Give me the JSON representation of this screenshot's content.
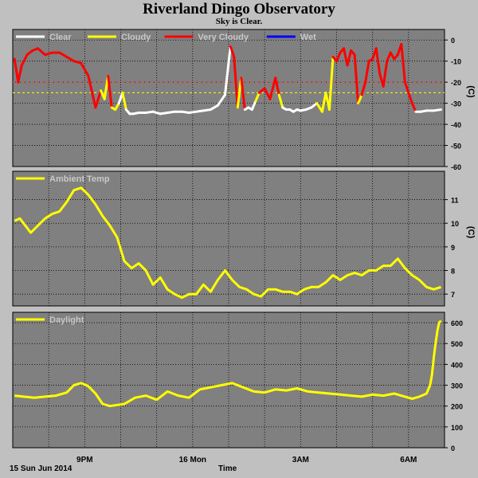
{
  "title": "Riverland Dingo Observatory",
  "subtitle": "Sky is Clear.",
  "date_label": "15 Sun Jun 2014",
  "xlabel": "Time",
  "colors": {
    "panel_bg": "#808080",
    "page_bg": "#c0c0c0",
    "clear": "#ffffff",
    "cloudy": "#ffff00",
    "very_cloudy": "#ff0000",
    "wet": "#0000ff",
    "temp": "#ffff00",
    "daylight": "#ffff00",
    "threshold": "#ffff00",
    "threshold2": "#ff4040"
  },
  "chart_data": [
    {
      "type": "line",
      "name": "sky-temperature-panel",
      "ylabel": "(C)",
      "ylim": [
        -60,
        5
      ],
      "yticks": [
        0,
        -10,
        -20,
        -30,
        -40,
        -50,
        -60
      ],
      "xlim": [
        19.0,
        31.0
      ],
      "xticks": [
        {
          "x": 21,
          "label": "9PM"
        },
        {
          "x": 24,
          "label": "16 Mon"
        },
        {
          "x": 27,
          "label": "3AM"
        },
        {
          "x": 30,
          "label": "6AM"
        }
      ],
      "grid": true,
      "legend": [
        {
          "name": "Clear",
          "color": "#ffffff"
        },
        {
          "name": "Cloudy",
          "color": "#ffff00"
        },
        {
          "name": "Very Cloudy",
          "color": "#ff0000"
        },
        {
          "name": "Wet",
          "color": "#0000ff"
        }
      ],
      "thresholds": [
        {
          "value": -20,
          "color": "#ff4040"
        },
        {
          "value": -25,
          "color": "#ffff00"
        }
      ],
      "x": [
        19.05,
        19.15,
        19.25,
        19.4,
        19.55,
        19.7,
        19.9,
        20.1,
        20.3,
        20.5,
        20.7,
        20.9,
        21.1,
        21.3,
        21.45,
        21.55,
        21.65,
        21.75,
        21.85,
        21.95,
        22.05,
        22.15,
        22.25,
        22.35,
        22.5,
        22.7,
        22.9,
        23.1,
        23.3,
        23.5,
        23.7,
        23.9,
        24.1,
        24.3,
        24.5,
        24.7,
        24.9,
        25.05,
        25.15,
        25.25,
        25.35,
        25.45,
        25.55,
        25.65,
        25.75,
        25.85,
        26.0,
        26.15,
        26.3,
        26.4,
        26.5,
        26.6,
        26.7,
        26.8,
        26.9,
        27.0,
        27.15,
        27.3,
        27.45,
        27.6,
        27.7,
        27.8,
        27.9,
        28.0,
        28.1,
        28.2,
        28.3,
        28.4,
        28.5,
        28.6,
        28.7,
        28.8,
        28.9,
        29.0,
        29.1,
        29.2,
        29.3,
        29.4,
        29.5,
        29.6,
        29.7,
        29.8,
        29.9,
        30.0,
        30.1,
        30.2,
        30.35,
        30.5,
        30.7,
        30.9
      ],
      "y": [
        -9,
        -20,
        -12,
        -7,
        -5,
        -4,
        -7,
        -6,
        -6,
        -8,
        -10,
        -11,
        -17,
        -32,
        -24,
        -28,
        -17,
        -32,
        -33,
        -30,
        -25,
        -33,
        -35,
        -35,
        -34.5,
        -34.5,
        -34,
        -35,
        -34.5,
        -34,
        -34,
        -34.5,
        -34,
        -33.5,
        -33,
        -31,
        -26,
        -3,
        -8,
        -32,
        -18,
        -33,
        -32,
        -33,
        -29,
        -25,
        -23,
        -28,
        -18,
        -26,
        -32,
        -33,
        -33,
        -34,
        -33,
        -33.5,
        -33,
        -32,
        -30,
        -34,
        -25,
        -33,
        -8,
        -10,
        -6,
        -4,
        -12,
        -5,
        -7,
        -30,
        -26,
        -20,
        -10,
        -9,
        -4,
        -16,
        -22,
        -10,
        -6,
        -9,
        -7,
        -2,
        -20,
        -25,
        -30,
        -34,
        -34,
        -33.5,
        -33.5,
        -33
      ],
      "categories": [
        "very_cloudy",
        "very_cloudy",
        "very_cloudy",
        "very_cloudy",
        "very_cloudy",
        "very_cloudy",
        "very_cloudy",
        "very_cloudy",
        "very_cloudy",
        "very_cloudy",
        "very_cloudy",
        "very_cloudy",
        "very_cloudy",
        "very_cloudy",
        "cloudy",
        "cloudy",
        "very_cloudy",
        "cloudy",
        "cloudy",
        "clear",
        "cloudy",
        "clear",
        "clear",
        "clear",
        "clear",
        "clear",
        "clear",
        "clear",
        "clear",
        "clear",
        "clear",
        "clear",
        "clear",
        "clear",
        "clear",
        "clear",
        "clear",
        "very_cloudy",
        "very_cloudy",
        "cloudy",
        "very_cloudy",
        "clear",
        "clear",
        "clear",
        "cloudy",
        "very_cloudy",
        "very_cloudy",
        "very_cloudy",
        "very_cloudy",
        "cloudy",
        "clear",
        "clear",
        "clear",
        "clear",
        "clear",
        "clear",
        "clear",
        "clear",
        "cloudy",
        "cloudy",
        "cloudy",
        "cloudy",
        "very_cloudy",
        "very_cloudy",
        "very_cloudy",
        "very_cloudy",
        "very_cloudy",
        "very_cloudy",
        "very_cloudy",
        "cloudy",
        "very_cloudy",
        "very_cloudy",
        "very_cloudy",
        "very_cloudy",
        "very_cloudy",
        "very_cloudy",
        "very_cloudy",
        "very_cloudy",
        "very_cloudy",
        "very_cloudy",
        "very_cloudy",
        "very_cloudy",
        "very_cloudy",
        "very_cloudy",
        "very_cloudy",
        "clear",
        "clear",
        "clear",
        "clear",
        "clear"
      ]
    },
    {
      "type": "line",
      "name": "ambient-temp-panel",
      "ylabel": "(C)",
      "ylim": [
        6.5,
        12.2
      ],
      "yticks": [
        7,
        8,
        9,
        10,
        11
      ],
      "xlim": [
        19.0,
        31.0
      ],
      "grid": true,
      "legend": [
        {
          "name": "Ambient Temp",
          "color": "#ffff00"
        }
      ],
      "x": [
        19.05,
        19.2,
        19.35,
        19.5,
        19.7,
        19.9,
        20.1,
        20.3,
        20.5,
        20.7,
        20.9,
        21.1,
        21.3,
        21.5,
        21.7,
        21.9,
        22.1,
        22.3,
        22.5,
        22.7,
        22.9,
        23.1,
        23.3,
        23.5,
        23.7,
        23.9,
        24.1,
        24.3,
        24.5,
        24.7,
        24.9,
        25.1,
        25.3,
        25.5,
        25.7,
        25.9,
        26.1,
        26.3,
        26.5,
        26.7,
        26.9,
        27.1,
        27.3,
        27.5,
        27.7,
        27.9,
        28.1,
        28.3,
        28.5,
        28.7,
        28.9,
        29.1,
        29.3,
        29.5,
        29.7,
        29.9,
        30.1,
        30.3,
        30.5,
        30.7,
        30.9
      ],
      "y": [
        10.1,
        10.2,
        9.9,
        9.6,
        9.9,
        10.2,
        10.4,
        10.5,
        10.9,
        11.4,
        11.5,
        11.2,
        10.8,
        10.3,
        9.9,
        9.4,
        8.4,
        8.1,
        8.3,
        8.0,
        7.4,
        7.7,
        7.2,
        7.0,
        6.85,
        7.0,
        7.0,
        7.4,
        7.1,
        7.6,
        8.0,
        7.6,
        7.3,
        7.2,
        7.0,
        6.9,
        7.2,
        7.2,
        7.1,
        7.1,
        7.0,
        7.2,
        7.3,
        7.3,
        7.5,
        7.8,
        7.6,
        7.8,
        7.9,
        7.8,
        8.0,
        8.0,
        8.2,
        8.2,
        8.5,
        8.1,
        7.8,
        7.6,
        7.3,
        7.2,
        7.3
      ]
    },
    {
      "type": "line",
      "name": "daylight-panel",
      "ylabel": "",
      "ylim": [
        0,
        650
      ],
      "yticks": [
        0,
        100,
        200,
        300,
        400,
        500,
        600
      ],
      "xlim": [
        19.0,
        31.0
      ],
      "grid": true,
      "legend": [
        {
          "name": "Daylight",
          "color": "#ffff00"
        }
      ],
      "x": [
        19.05,
        19.3,
        19.6,
        19.9,
        20.2,
        20.5,
        20.7,
        20.9,
        21.1,
        21.3,
        21.5,
        21.7,
        21.9,
        22.1,
        22.4,
        22.7,
        23.0,
        23.3,
        23.6,
        23.9,
        24.2,
        24.5,
        24.8,
        25.1,
        25.4,
        25.7,
        26.0,
        26.3,
        26.6,
        26.9,
        27.2,
        27.5,
        27.8,
        28.1,
        28.4,
        28.7,
        29.0,
        29.3,
        29.6,
        29.9,
        30.1,
        30.3,
        30.5,
        30.6,
        30.65,
        30.7,
        30.75,
        30.8,
        30.85,
        30.9
      ],
      "y": [
        250,
        245,
        240,
        245,
        250,
        265,
        300,
        310,
        295,
        260,
        210,
        200,
        205,
        210,
        240,
        250,
        230,
        270,
        250,
        240,
        280,
        290,
        300,
        310,
        290,
        270,
        265,
        280,
        275,
        285,
        270,
        265,
        260,
        255,
        250,
        245,
        255,
        250,
        260,
        245,
        235,
        245,
        260,
        300,
        350,
        430,
        500,
        560,
        600,
        610
      ]
    }
  ]
}
